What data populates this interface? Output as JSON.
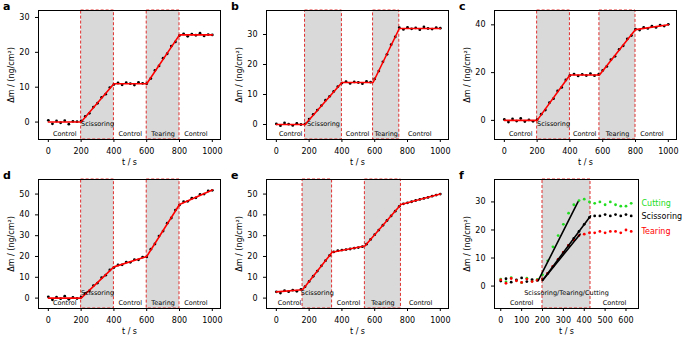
{
  "chart_data": [
    {
      "type": "scatter",
      "title": "a",
      "x_label": "t / s",
      "y_label": "Δm / (ng/cm²)",
      "xlim": [
        -60,
        1050
      ],
      "xticks": [
        0,
        200,
        400,
        600,
        800,
        1000
      ],
      "ylim": [
        -5,
        32
      ],
      "yticks": [
        0,
        10,
        20,
        30
      ],
      "control_periods": [
        {
          "from": 0,
          "to": 200,
          "label": "Control"
        },
        {
          "from": 400,
          "to": 600,
          "label": "Control"
        },
        {
          "from": 800,
          "to": 1000,
          "label": "Control"
        }
      ],
      "treatment_periods": [
        {
          "from": 200,
          "to": 400,
          "label": "Scissoring"
        },
        {
          "from": 600,
          "to": 800,
          "label": "Tearing"
        }
      ],
      "x": [
        0,
        25,
        50,
        75,
        100,
        125,
        150,
        175,
        200,
        225,
        250,
        275,
        300,
        325,
        350,
        375,
        400,
        425,
        450,
        475,
        500,
        525,
        550,
        575,
        600,
        625,
        650,
        675,
        700,
        725,
        750,
        775,
        800,
        825,
        850,
        875,
        900,
        925,
        950,
        975,
        1000
      ],
      "series": [
        {
          "type": "scatter",
          "color": "#000000",
          "values": [
            0.5,
            -0.5,
            0.3,
            -0.2,
            0.4,
            -0.6,
            0.2,
            0.1,
            0.3,
            1.6,
            2.5,
            4.3,
            5.4,
            7.1,
            8.0,
            9.9,
            10.8,
            11.2,
            10.7,
            11.3,
            11.0,
            10.6,
            11.4,
            11.1,
            11.0,
            12.5,
            14.8,
            16.1,
            18.3,
            19.6,
            21.8,
            23.0,
            24.8,
            25.3,
            24.6,
            25.2,
            24.9,
            25.5,
            24.7,
            25.1,
            25.0
          ]
        },
        {
          "type": "line",
          "color": "#ff0000",
          "x": [
            0,
            200,
            400,
            600,
            800,
            1000
          ],
          "values": [
            0,
            0,
            11,
            11,
            25,
            25
          ]
        }
      ]
    },
    {
      "type": "scatter",
      "title": "b",
      "x_label": "t / s",
      "y_label": "Δm / (ng/cm²)",
      "xlim": [
        -60,
        1050
      ],
      "xticks": [
        0,
        200,
        400,
        600,
        800,
        1000
      ],
      "ylim": [
        -5,
        38
      ],
      "yticks": [
        0,
        10,
        20,
        30
      ],
      "control_periods": [
        {
          "from": 0,
          "to": 175,
          "label": "Control"
        },
        {
          "from": 400,
          "to": 590,
          "label": "Control"
        },
        {
          "from": 750,
          "to": 1000,
          "label": "Control"
        }
      ],
      "treatment_periods": [
        {
          "from": 175,
          "to": 400,
          "label": "Scissoring"
        },
        {
          "from": 590,
          "to": 750,
          "label": "Tearing"
        }
      ],
      "x": [
        0,
        25,
        50,
        75,
        100,
        125,
        150,
        175,
        200,
        225,
        250,
        275,
        300,
        325,
        350,
        375,
        400,
        425,
        450,
        475,
        500,
        525,
        550,
        575,
        600,
        625,
        650,
        675,
        700,
        725,
        750,
        775,
        800,
        825,
        850,
        875,
        900,
        925,
        950,
        975,
        1000
      ],
      "series": [
        {
          "type": "scatter",
          "color": "#000000",
          "values": [
            0.2,
            -0.4,
            0.5,
            0.1,
            -0.3,
            0.4,
            0.0,
            0.2,
            1.8,
            3.4,
            4.8,
            6.3,
            8.1,
            9.4,
            11.0,
            12.6,
            13.8,
            14.3,
            13.7,
            14.2,
            14.0,
            13.6,
            14.4,
            14.1,
            15.2,
            17.8,
            20.9,
            23.4,
            26.6,
            29.2,
            32.3,
            31.7,
            32.4,
            31.9,
            32.2,
            31.6,
            32.5,
            32.0,
            31.8,
            32.3,
            32.1
          ]
        },
        {
          "type": "line",
          "color": "#ff0000",
          "x": [
            0,
            175,
            400,
            590,
            750,
            1000
          ],
          "values": [
            0,
            0,
            14,
            14,
            32,
            32
          ]
        }
      ]
    },
    {
      "type": "scatter",
      "title": "c",
      "x_label": "t / s",
      "y_label": "Δm / (ng/cm²)",
      "xlim": [
        -60,
        1050
      ],
      "xticks": [
        0,
        200,
        400,
        600,
        800,
        1000
      ],
      "ylim": [
        -8,
        46
      ],
      "yticks": [
        0,
        20,
        40
      ],
      "control_periods": [
        {
          "from": 0,
          "to": 200,
          "label": "Control"
        },
        {
          "from": 400,
          "to": 580,
          "label": "Control"
        },
        {
          "from": 800,
          "to": 1000,
          "label": "Control"
        }
      ],
      "treatment_periods": [
        {
          "from": 200,
          "to": 400,
          "label": "Scissoring"
        },
        {
          "from": 580,
          "to": 800,
          "label": "Tearing"
        }
      ],
      "x": [
        0,
        25,
        50,
        75,
        100,
        125,
        150,
        175,
        200,
        225,
        250,
        275,
        300,
        325,
        350,
        375,
        400,
        425,
        450,
        475,
        500,
        525,
        550,
        575,
        600,
        625,
        650,
        675,
        700,
        725,
        750,
        775,
        800,
        825,
        850,
        875,
        900,
        925,
        950,
        975,
        1000
      ],
      "series": [
        {
          "type": "scatter",
          "color": "#000000",
          "values": [
            0.4,
            -0.7,
            0.6,
            -0.3,
            0.8,
            -0.5,
            0.2,
            -0.4,
            0.3,
            2.6,
            4.3,
            7.4,
            9.1,
            12.3,
            13.8,
            16.9,
            18.8,
            19.4,
            18.6,
            19.3,
            18.8,
            19.6,
            18.7,
            19.2,
            20.9,
            22.6,
            25.4,
            26.8,
            29.7,
            31.2,
            34.1,
            35.5,
            38.2,
            37.8,
            38.9,
            38.5,
            39.4,
            38.9,
            39.9,
            39.5,
            40.2
          ]
        },
        {
          "type": "line",
          "color": "#ff0000",
          "x": [
            0,
            200,
            400,
            580,
            800,
            1000
          ],
          "values": [
            0,
            0,
            19,
            19,
            38,
            40
          ]
        }
      ]
    },
    {
      "type": "scatter",
      "title": "d",
      "x_label": "t / s",
      "y_label": "Δm / (ng/cm²)",
      "xlim": [
        -60,
        1050
      ],
      "xticks": [
        0,
        200,
        400,
        600,
        800,
        1000
      ],
      "ylim": [
        -5,
        57
      ],
      "yticks": [
        0,
        10,
        20,
        30,
        40,
        50
      ],
      "control_periods": [
        {
          "from": 0,
          "to": 200,
          "label": "Control"
        },
        {
          "from": 400,
          "to": 600,
          "label": "Control"
        },
        {
          "from": 800,
          "to": 1000,
          "label": "Control"
        }
      ],
      "treatment_periods": [
        {
          "from": 200,
          "to": 400,
          "label": "Scissoring"
        },
        {
          "from": 600,
          "to": 800,
          "label": "Tearing"
        }
      ],
      "x": [
        0,
        25,
        50,
        75,
        100,
        125,
        150,
        175,
        200,
        225,
        250,
        275,
        300,
        325,
        350,
        375,
        400,
        425,
        450,
        475,
        500,
        525,
        550,
        575,
        600,
        625,
        650,
        675,
        700,
        725,
        750,
        775,
        800,
        825,
        850,
        875,
        900,
        925,
        950,
        975,
        1000
      ],
      "series": [
        {
          "type": "scatter",
          "color": "#000000",
          "values": [
            0.6,
            -0.8,
            0.4,
            -0.3,
            0.9,
            -0.6,
            0.3,
            -0.2,
            0.5,
            2.3,
            3.4,
            6.0,
            7.2,
            9.8,
            11.0,
            13.5,
            14.7,
            15.9,
            16.0,
            17.3,
            17.2,
            18.5,
            18.4,
            19.7,
            19.8,
            23.5,
            26.0,
            29.8,
            32.2,
            36.0,
            38.5,
            42.3,
            44.7,
            46.3,
            46.5,
            48.0,
            48.2,
            49.8,
            50.0,
            51.5,
            51.8
          ]
        },
        {
          "type": "line",
          "color": "#ff0000",
          "x": [
            0,
            200,
            400,
            600,
            800,
            1000
          ],
          "values": [
            0,
            0,
            15,
            20,
            45,
            52
          ]
        }
      ]
    },
    {
      "type": "scatter",
      "title": "e",
      "x_label": "t / s",
      "y_label": "Δm / (ng/cm²)",
      "xlim": [
        -60,
        1050
      ],
      "xticks": [
        0,
        200,
        400,
        600,
        800,
        1000
      ],
      "ylim": [
        -5,
        57
      ],
      "yticks": [
        0,
        10,
        20,
        30,
        40,
        50
      ],
      "control_periods": [
        {
          "from": 0,
          "to": 160,
          "label": "Control"
        },
        {
          "from": 340,
          "to": 540,
          "label": "Control"
        },
        {
          "from": 760,
          "to": 1000,
          "label": "Control"
        }
      ],
      "treatment_periods": [
        {
          "from": 160,
          "to": 340,
          "label": "Scissoring"
        },
        {
          "from": 540,
          "to": 760,
          "label": "Tearing"
        }
      ],
      "x": [
        0,
        25,
        50,
        75,
        100,
        125,
        150,
        175,
        200,
        225,
        250,
        275,
        300,
        325,
        350,
        375,
        400,
        425,
        450,
        475,
        500,
        525,
        550,
        575,
        600,
        625,
        650,
        675,
        700,
        725,
        750,
        775,
        800,
        825,
        850,
        875,
        900,
        925,
        950,
        975,
        1000
      ],
      "series": [
        {
          "type": "scatter",
          "color": "#000000",
          "values": [
            3.0,
            2.4,
            3.6,
            3.1,
            3.8,
            3.3,
            4.2,
            5.5,
            8.0,
            10.5,
            13.0,
            15.5,
            18.0,
            20.5,
            22.2,
            22.8,
            23.1,
            23.3,
            23.6,
            24.0,
            24.3,
            24.7,
            25.9,
            28.2,
            30.5,
            32.7,
            35.0,
            37.3,
            39.5,
            41.8,
            44.1,
            45.3,
            45.8,
            46.3,
            46.9,
            47.4,
            47.9,
            48.4,
            49.0,
            49.5,
            50.0
          ]
        },
        {
          "type": "line",
          "color": "#ff0000",
          "x": [
            0,
            160,
            340,
            540,
            760,
            1000
          ],
          "values": [
            3,
            4,
            22,
            25,
            45,
            50
          ]
        }
      ]
    },
    {
      "type": "scatter",
      "title": "f",
      "x_label": "t / s",
      "y_label": "Δm / (ng/cm²)",
      "xlim": [
        -30,
        660
      ],
      "xticks": [
        0,
        100,
        200,
        300,
        400,
        500,
        600
      ],
      "ylim": [
        -8,
        38
      ],
      "yticks": [
        0,
        10,
        20,
        30
      ],
      "control_periods": [
        {
          "from": 0,
          "to": 200,
          "label": "Control"
        },
        {
          "from": 430,
          "to": 660,
          "label": "Control"
        }
      ],
      "treatment_periods": [
        {
          "from": 200,
          "to": 430,
          "label": "Scissoring/Tearing/Cutting"
        }
      ],
      "x": [
        0,
        25,
        50,
        75,
        100,
        125,
        150,
        175,
        200,
        225,
        250,
        275,
        300,
        325,
        350,
        375,
        400,
        425,
        450,
        475,
        500,
        525,
        550,
        575,
        600,
        625
      ],
      "series": [
        {
          "type": "scatter",
          "name": "Cutting",
          "color": "#22dd22",
          "values": [
            2.5,
            1.5,
            3.0,
            2.0,
            1.2,
            2.8,
            1.8,
            2.4,
            4,
            9,
            14,
            18,
            22,
            26,
            29,
            30.5,
            31,
            30,
            29.5,
            30,
            29,
            30,
            29,
            28.5,
            28.5,
            29.5
          ]
        },
        {
          "type": "scatter",
          "name": "Scissoring",
          "color": "#000000",
          "values": [
            1.8,
            2.6,
            1.4,
            2.2,
            2.9,
            1.6,
            2.3,
            2.0,
            2.5,
            4.5,
            7,
            9.5,
            12,
            14.5,
            17,
            19.5,
            22,
            24.5,
            25,
            25,
            25.5,
            25,
            25.5,
            25,
            25.5,
            25
          ]
        },
        {
          "type": "scatter",
          "name": "Tearing",
          "color": "#ff0000",
          "values": [
            2.2,
            1.0,
            2.7,
            1.9,
            1.3,
            2.5,
            1.6,
            2.1,
            2.3,
            4.5,
            7,
            9.5,
            12,
            14.5,
            16.5,
            18,
            18.5,
            19,
            19,
            19.5,
            19,
            19.5,
            19.5,
            19,
            20,
            19.5
          ]
        },
        {
          "type": "line",
          "color": "#000000",
          "x": [
            180,
            370
          ],
          "values": [
            2,
            30
          ]
        },
        {
          "type": "line",
          "color": "#000000",
          "x": [
            200,
            430
          ],
          "values": [
            2,
            25
          ]
        },
        {
          "type": "line",
          "color": "#000000",
          "x": [
            200,
            380
          ],
          "values": [
            2,
            18.5
          ]
        }
      ]
    }
  ]
}
